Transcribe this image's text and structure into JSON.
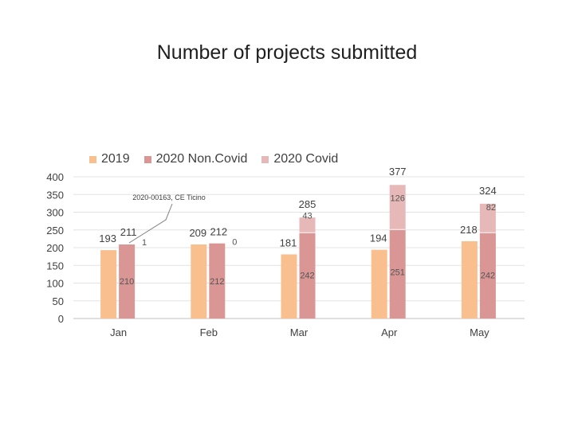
{
  "chart_data": {
    "type": "bar",
    "title": "Number of projects submitted",
    "categories": [
      "Jan",
      "Feb",
      "Mar",
      "Apr",
      "May"
    ],
    "ylim": [
      0,
      400
    ],
    "yticks": [
      "0",
      "50",
      "100",
      "150",
      "200",
      "250",
      "300",
      "350",
      "400"
    ],
    "grid": true,
    "legend_position": "top-left",
    "series": [
      {
        "name": "2019",
        "color": "#f9bf8f",
        "values": [
          193,
          209,
          181,
          194,
          218
        ]
      },
      {
        "name": "2020 Non.Covid",
        "color": "#d99694",
        "values": [
          210,
          212,
          242,
          251,
          242
        ]
      },
      {
        "name": "2020 Covid",
        "color": "#e6b9b8",
        "values": [
          1,
          0,
          43,
          126,
          82
        ]
      }
    ],
    "labels_2019": [
      "193",
      "209",
      "181",
      "194",
      "218"
    ],
    "labels_noncovid": [
      "210",
      "212",
      "242",
      "251",
      "242"
    ],
    "labels_covid": [
      "1",
      "0",
      "43",
      "126",
      "82"
    ],
    "labels_total": [
      "211",
      "212",
      "285",
      "377",
      "324"
    ],
    "annotation": "2020-00163, CE Ticino"
  }
}
